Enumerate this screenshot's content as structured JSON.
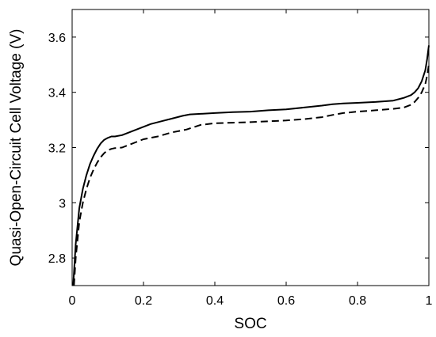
{
  "chart_data": {
    "type": "line",
    "title": "",
    "xlabel": "SOC",
    "ylabel": "Quasi-Open-Circuit Cell Voltage (V)",
    "xlim": [
      0,
      1
    ],
    "ylim": [
      2.7,
      3.7
    ],
    "xticks": [
      0,
      0.2,
      0.4,
      0.6,
      0.8,
      1
    ],
    "xtick_labels": [
      "0",
      "0.2",
      "0.4",
      "0.6",
      "0.8",
      "1"
    ],
    "yticks": [
      2.8,
      3.0,
      3.2,
      3.4,
      3.6
    ],
    "ytick_labels": [
      "2.8",
      "3",
      "3.2",
      "3.4",
      "3.6"
    ],
    "grid": false,
    "legend": "none",
    "series": [
      {
        "style": "solid",
        "color": "#000000",
        "x": [
          0.003,
          0.01,
          0.02,
          0.03,
          0.04,
          0.05,
          0.06,
          0.07,
          0.08,
          0.09,
          0.1,
          0.11,
          0.12,
          0.14,
          0.16,
          0.18,
          0.2,
          0.22,
          0.25,
          0.28,
          0.31,
          0.33,
          0.36,
          0.4,
          0.45,
          0.5,
          0.55,
          0.6,
          0.65,
          0.7,
          0.73,
          0.76,
          0.8,
          0.85,
          0.9,
          0.93,
          0.95,
          0.96,
          0.97,
          0.98,
          0.99,
          0.995,
          1.0
        ],
        "y": [
          2.7,
          2.85,
          2.98,
          3.05,
          3.1,
          3.14,
          3.17,
          3.195,
          3.215,
          3.228,
          3.235,
          3.24,
          3.24,
          3.245,
          3.255,
          3.265,
          3.275,
          3.285,
          3.295,
          3.305,
          3.315,
          3.32,
          3.322,
          3.325,
          3.328,
          3.33,
          3.335,
          3.338,
          3.345,
          3.352,
          3.357,
          3.36,
          3.362,
          3.365,
          3.37,
          3.38,
          3.39,
          3.4,
          3.415,
          3.44,
          3.48,
          3.52,
          3.57
        ]
      },
      {
        "style": "dashed",
        "color": "#000000",
        "x": [
          0.005,
          0.01,
          0.02,
          0.03,
          0.04,
          0.05,
          0.06,
          0.07,
          0.08,
          0.09,
          0.1,
          0.11,
          0.12,
          0.14,
          0.16,
          0.18,
          0.2,
          0.24,
          0.28,
          0.32,
          0.36,
          0.4,
          0.45,
          0.5,
          0.55,
          0.6,
          0.65,
          0.7,
          0.73,
          0.76,
          0.8,
          0.85,
          0.9,
          0.93,
          0.95,
          0.96,
          0.97,
          0.98,
          0.99,
          0.995,
          1.0
        ],
        "y": [
          2.7,
          2.8,
          2.93,
          3.0,
          3.05,
          3.09,
          3.12,
          3.145,
          3.165,
          3.18,
          3.19,
          3.195,
          3.198,
          3.2,
          3.21,
          3.22,
          3.23,
          3.24,
          3.255,
          3.265,
          3.282,
          3.288,
          3.29,
          3.292,
          3.295,
          3.298,
          3.303,
          3.31,
          3.318,
          3.325,
          3.33,
          3.335,
          3.34,
          3.345,
          3.355,
          3.365,
          3.38,
          3.4,
          3.43,
          3.46,
          3.5
        ]
      }
    ]
  }
}
